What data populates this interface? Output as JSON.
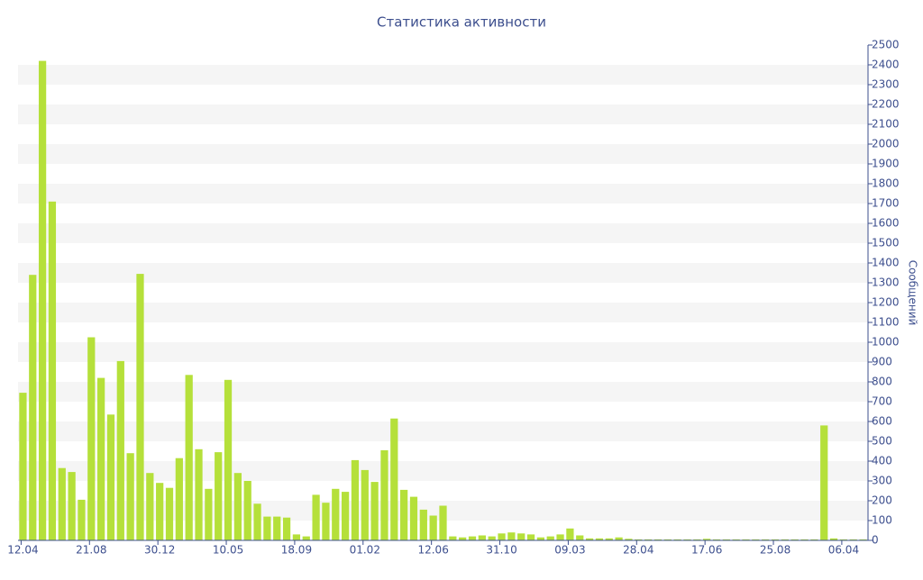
{
  "chart_data": {
    "type": "bar",
    "title": "Статистика активности",
    "y_label": "Сообщений",
    "categories": [
      "12.04",
      null,
      null,
      null,
      null,
      null,
      null,
      "21.08",
      null,
      null,
      null,
      null,
      null,
      null,
      "30.12",
      null,
      null,
      null,
      null,
      null,
      null,
      "10.05",
      null,
      null,
      null,
      null,
      null,
      null,
      "18.09",
      null,
      null,
      null,
      null,
      null,
      null,
      "01.02",
      null,
      null,
      null,
      null,
      null,
      null,
      "12.06",
      null,
      null,
      null,
      null,
      null,
      null,
      "31.10",
      null,
      null,
      null,
      null,
      null,
      null,
      "09.03",
      null,
      null,
      null,
      null,
      null,
      null,
      "28.04",
      null,
      null,
      null,
      null,
      null,
      null,
      "17.06",
      null,
      null,
      null,
      null,
      null,
      null,
      "25.08",
      null,
      null,
      null,
      null,
      null,
      null,
      "06.04",
      null,
      null
    ],
    "values": [
      745,
      1340,
      2420,
      1710,
      365,
      345,
      205,
      1025,
      820,
      635,
      905,
      440,
      1345,
      340,
      290,
      265,
      415,
      835,
      460,
      260,
      445,
      810,
      340,
      300,
      185,
      120,
      120,
      115,
      30,
      20,
      230,
      190,
      260,
      245,
      405,
      355,
      295,
      455,
      615,
      255,
      220,
      155,
      125,
      175,
      20,
      15,
      20,
      25,
      20,
      35,
      40,
      35,
      30,
      15,
      20,
      30,
      60,
      25,
      10,
      10,
      10,
      15,
      8,
      5,
      5,
      5,
      5,
      5,
      5,
      5,
      8,
      5,
      5,
      5,
      5,
      5,
      5,
      5,
      5,
      5,
      5,
      5,
      580,
      10,
      5,
      5,
      5
    ],
    "color": "#b5e03a",
    "ylim": [
      0,
      2500
    ],
    "yticks": [
      0,
      100,
      200,
      300,
      400,
      500,
      600,
      700,
      800,
      900,
      1000,
      1100,
      1200,
      1300,
      1400,
      1500,
      1600,
      1700,
      1800,
      1900,
      2000,
      2100,
      2200,
      2300,
      2400,
      2500
    ],
    "grid": true
  }
}
